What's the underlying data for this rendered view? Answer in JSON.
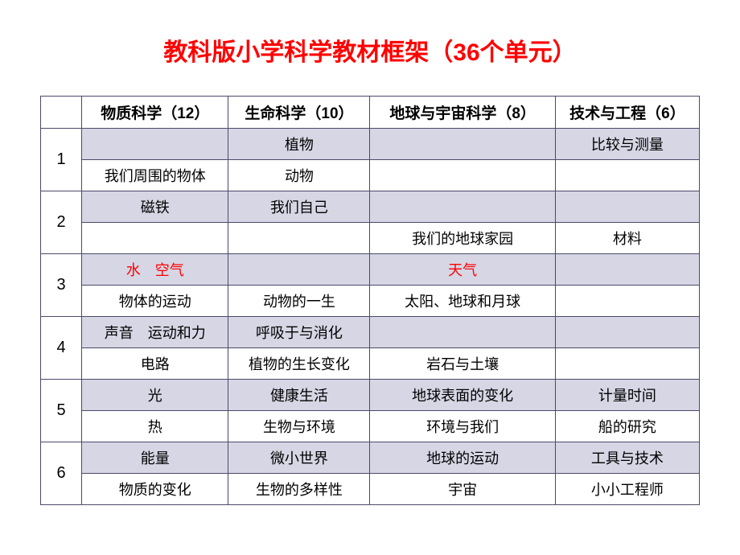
{
  "title": "教科版小学科学教材框架（36个单元）",
  "headers": {
    "blank": "",
    "col1": "物质科学（12）",
    "col2": "生命科学（10）",
    "col3": "地球与宇宙科学（8）",
    "col4": "技术与工程（6）"
  },
  "groups": [
    {
      "num": "1",
      "rows": [
        {
          "c1": "",
          "c2": "植物",
          "c3": "",
          "c4": "比较与测量",
          "c1_red": false,
          "c3_red": false
        },
        {
          "c1": "我们周围的物体",
          "c2": "动物",
          "c3": "",
          "c4": "",
          "c1_red": false,
          "c3_red": false
        }
      ]
    },
    {
      "num": "2",
      "rows": [
        {
          "c1": "磁铁",
          "c2": "我们自己",
          "c3": "",
          "c4": "",
          "c1_red": false,
          "c3_red": false
        },
        {
          "c1": "",
          "c2": "",
          "c3": "我们的地球家园",
          "c4": "材料",
          "c1_red": false,
          "c3_red": false
        }
      ]
    },
    {
      "num": "3",
      "rows": [
        {
          "c1": "水　空气",
          "c2": "",
          "c3": "天气",
          "c4": "",
          "c1_red": true,
          "c3_red": true
        },
        {
          "c1": "物体的运动",
          "c2": "动物的一生",
          "c3": "太阳、地球和月球",
          "c4": "",
          "c1_red": false,
          "c3_red": false
        }
      ]
    },
    {
      "num": "4",
      "rows": [
        {
          "c1": "声音　运动和力",
          "c2": "呼吸于与消化",
          "c3": "",
          "c4": "",
          "c1_red": false,
          "c3_red": false
        },
        {
          "c1": "电路",
          "c2": "植物的生长变化",
          "c3": "岩石与土壤",
          "c4": "",
          "c1_red": false,
          "c3_red": false
        }
      ]
    },
    {
      "num": "5",
      "rows": [
        {
          "c1": "光",
          "c2": "健康生活",
          "c3": "地球表面的变化",
          "c4": "计量时间",
          "c1_red": false,
          "c3_red": false
        },
        {
          "c1": "热",
          "c2": "生物与环境",
          "c3": "环境与我们",
          "c4": "船的研究",
          "c1_red": false,
          "c3_red": false
        }
      ]
    },
    {
      "num": "6",
      "rows": [
        {
          "c1": "能量",
          "c2": "微小世界",
          "c3": "地球的运动",
          "c4": "工具与技术",
          "c1_red": false,
          "c3_red": false
        },
        {
          "c1": "物质的变化",
          "c2": "生物的多样性",
          "c3": "宇宙",
          "c4": "小小工程师",
          "c1_red": false,
          "c3_red": false
        }
      ]
    }
  ]
}
